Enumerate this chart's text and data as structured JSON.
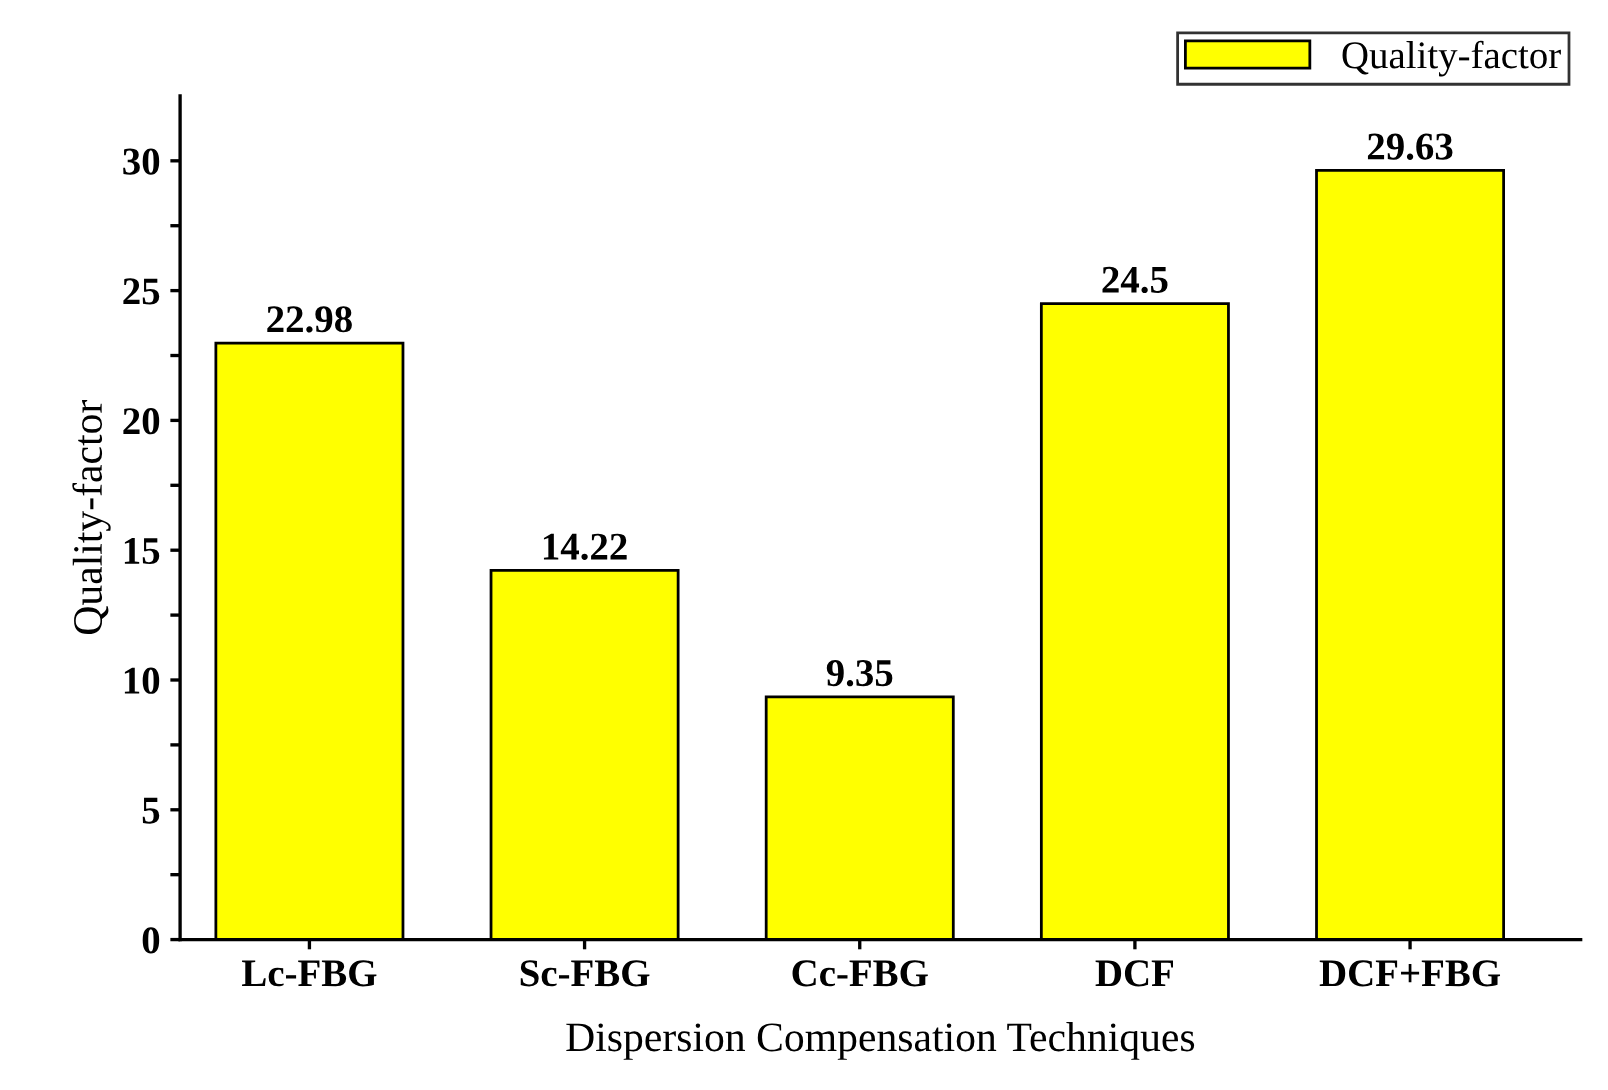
{
  "chart_data": {
    "type": "bar",
    "xlabel": "Dispersion Compensation Techniques",
    "ylabel": "Quality-factor",
    "categories": [
      "Lc-FBG",
      "Sc-FBG",
      "Cc-FBG",
      "DCF",
      "DCF+FBG"
    ],
    "series": [
      {
        "name": "Quality-factor",
        "color": "#ffff00",
        "values": [
          22.98,
          14.22,
          9.35,
          24.5,
          29.63
        ]
      }
    ],
    "data_labels": true,
    "ylim": [
      0,
      32.5
    ],
    "yticks": [
      0,
      {
        "value": 2.5,
        "label": null
      },
      5,
      {
        "value": 7.5,
        "label": null
      },
      10,
      {
        "value": 12.5,
        "label": null
      },
      15,
      {
        "value": 17.5,
        "label": null
      },
      20,
      {
        "value": 22.5,
        "label": null
      },
      25,
      {
        "value": 27.5,
        "label": null
      },
      30
    ],
    "grid": false,
    "legend": "top right"
  }
}
